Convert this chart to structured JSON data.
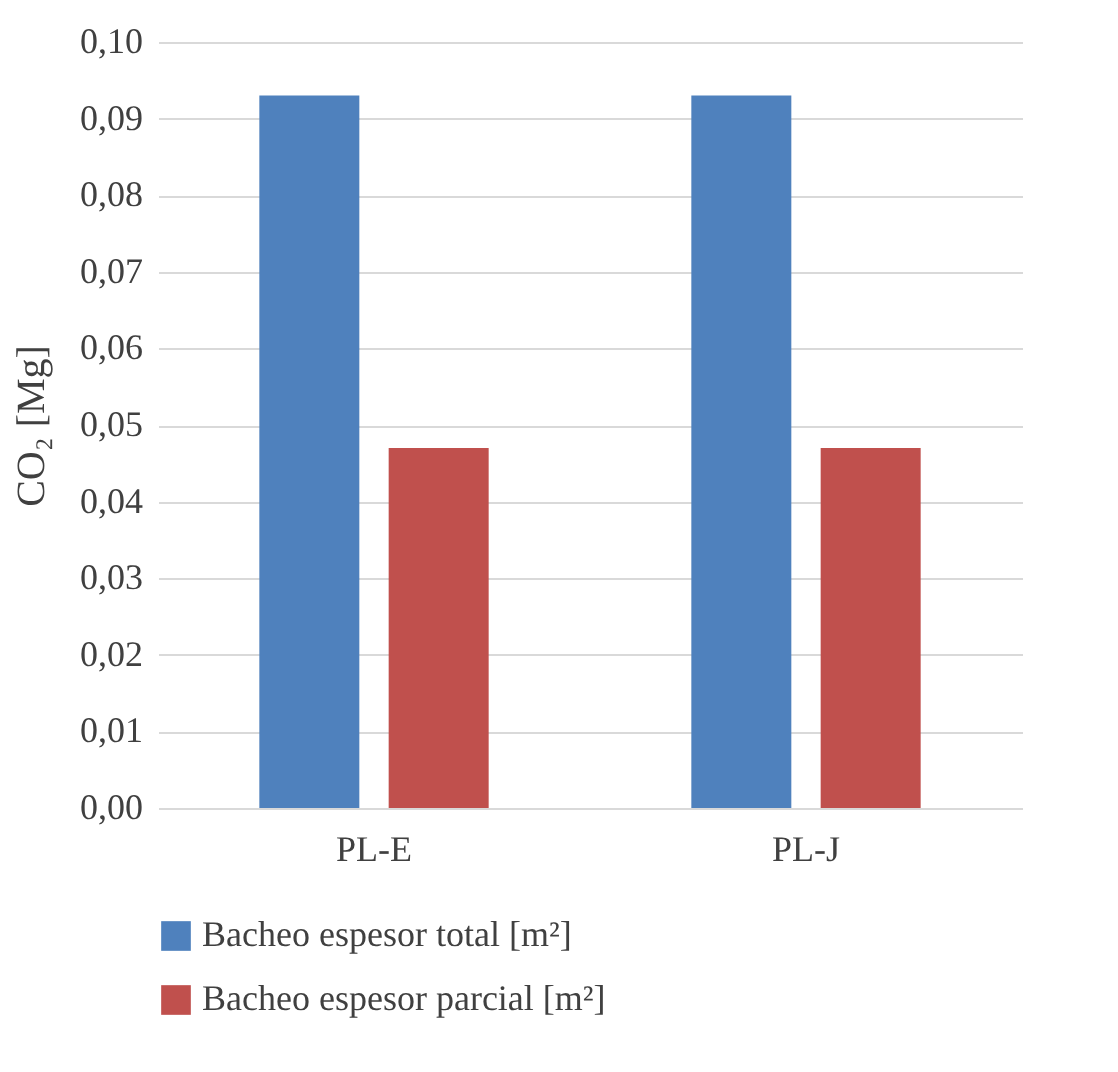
{
  "chart_data": {
    "type": "bar",
    "ylabel": "CO₂ [Mg]",
    "categories": [
      "PL-E",
      "PL-J"
    ],
    "series": [
      {
        "name": "Bacheo espesor total [m²]",
        "color": "#4f81bd",
        "values": [
          0.093,
          0.093
        ]
      },
      {
        "name": "Bacheo espesor parcial [m²]",
        "color": "#c0504d",
        "values": [
          0.047,
          0.047
        ]
      }
    ],
    "ylim": [
      0,
      0.1
    ],
    "yticks": [
      {
        "value": 0,
        "label": "0,00"
      },
      {
        "value": 0.01,
        "label": "0,01"
      },
      {
        "value": 0.02,
        "label": "0,02"
      },
      {
        "value": 0.03,
        "label": "0,03"
      },
      {
        "value": 0.04,
        "label": "0,04"
      },
      {
        "value": 0.05,
        "label": "0,05"
      },
      {
        "value": 0.06,
        "label": "0,06"
      },
      {
        "value": 0.07,
        "label": "0,07"
      },
      {
        "value": 0.08,
        "label": "0,08"
      },
      {
        "value": 0.09,
        "label": "0,09"
      },
      {
        "value": 0.1,
        "label": "0,10"
      }
    ],
    "grid": "y",
    "legend": "bottom"
  }
}
